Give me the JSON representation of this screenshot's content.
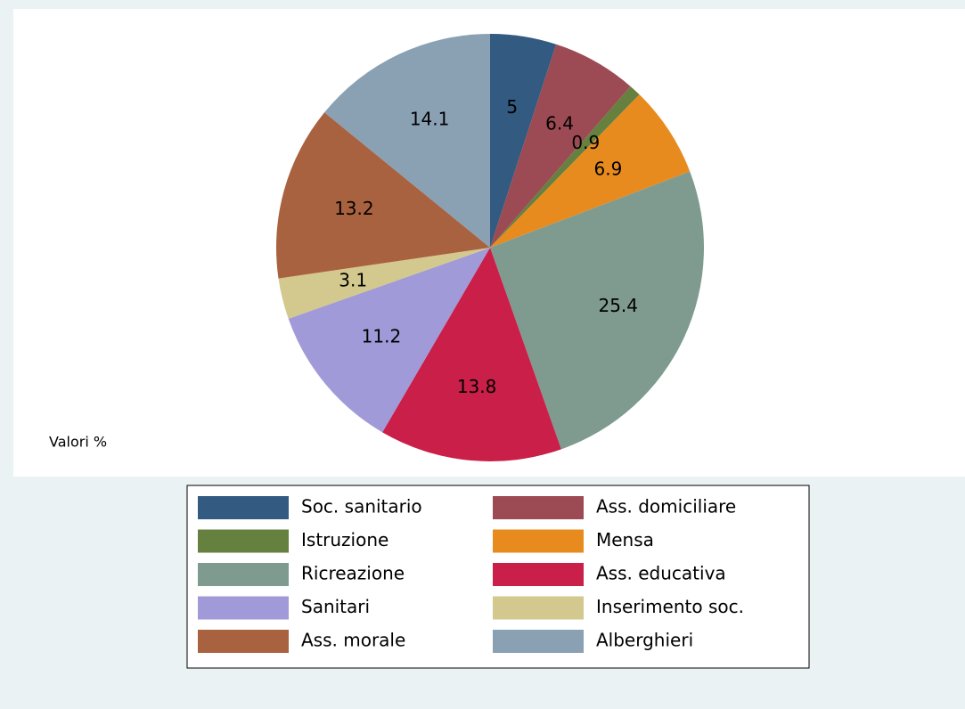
{
  "chart_data": {
    "type": "pie",
    "categories": [
      "Soc. sanitario",
      "Ass. domiciliare",
      "Istruzione",
      "Mensa",
      "Ricreazione",
      "Ass. educativa",
      "Sanitari",
      "Inserimento soc.",
      "Ass. morale",
      "Alberghieri"
    ],
    "values": [
      5,
      6.4,
      0.9,
      6.9,
      25.4,
      13.8,
      11.2,
      3.1,
      13.2,
      14.1
    ],
    "colors": [
      "#335a80",
      "#9c4a53",
      "#66803f",
      "#e88b1f",
      "#7f9b8f",
      "#c91f48",
      "#a09ad8",
      "#d3c98e",
      "#a9623f",
      "#8aa0b3"
    ],
    "note": "Valori %"
  }
}
